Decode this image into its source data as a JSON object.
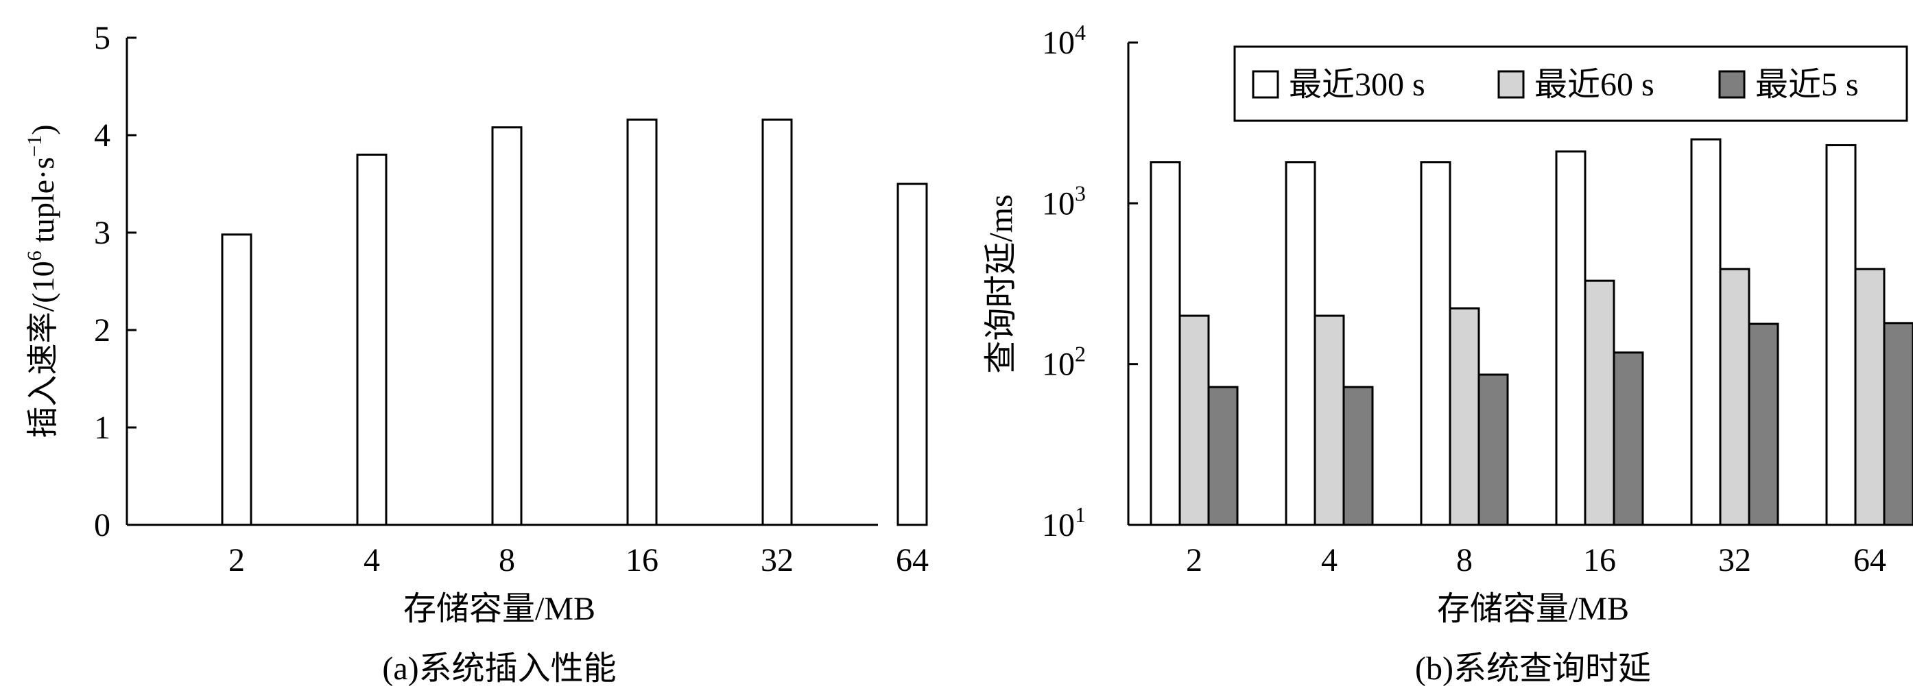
{
  "chart_data": [
    {
      "type": "bar",
      "caption": "(a)系统插入性能",
      "xlabel": "存储容量/MB",
      "ylabel_main": "插入速率/(10",
      "ylabel_exp": "6",
      "ylabel_rest": " tuple·s",
      "ylabel_exp2": "−1",
      "ylabel_close": ")",
      "categories": [
        "2",
        "4",
        "8",
        "16",
        "32",
        "64"
      ],
      "values": [
        2.98,
        3.8,
        4.08,
        4.16,
        4.16,
        3.5
      ],
      "ylim": [
        0,
        5
      ],
      "yticks": [
        "0",
        "1",
        "2",
        "3",
        "4",
        "5"
      ],
      "grid": false,
      "colors": {
        "bar_fill": "#ffffff",
        "bar_stroke": "#000000"
      }
    },
    {
      "type": "bar",
      "caption": "(b)系统查询时延",
      "xlabel": "存储容量/MB",
      "ylabel": "查询时延/ms",
      "yscale": "log",
      "ylim": [
        10,
        10000
      ],
      "yticks": [
        {
          "base": "10",
          "exp": "1"
        },
        {
          "base": "10",
          "exp": "2"
        },
        {
          "base": "10",
          "exp": "3"
        },
        {
          "base": "10",
          "exp": "4"
        }
      ],
      "categories": [
        "2",
        "4",
        "8",
        "16",
        "32",
        "64"
      ],
      "series": [
        {
          "name": "最近300 s",
          "color": "#ffffff",
          "values": [
            1800,
            1800,
            1800,
            2100,
            2500,
            2300
          ]
        },
        {
          "name": "最近60 s",
          "color": "#d4d4d4",
          "values": [
            200,
            200,
            222,
            330,
            390,
            390
          ]
        },
        {
          "name": "最近5 s",
          "color": "#7f7f7f",
          "values": [
            72,
            72,
            86,
            118,
            178,
            180
          ]
        }
      ],
      "legend_position": "top-right",
      "grid": false
    }
  ]
}
